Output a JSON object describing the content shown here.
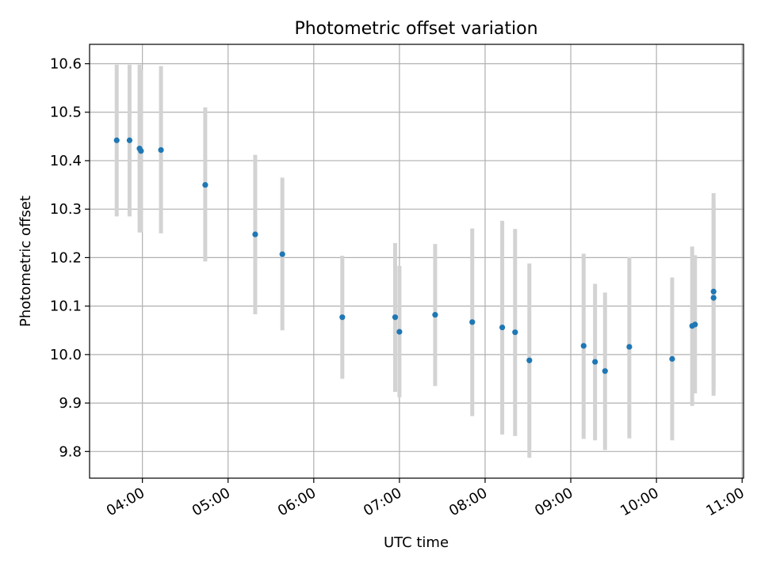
{
  "chart_data": {
    "type": "scatter",
    "title": "Photometric offset variation",
    "xlabel": "UTC time",
    "ylabel": "Photometric offset",
    "xlim": [
      "03:23",
      "11:01"
    ],
    "ylim": [
      9.745,
      10.64
    ],
    "x_ticks": [
      "04:00",
      "05:00",
      "06:00",
      "07:00",
      "08:00",
      "09:00",
      "10:00",
      "11:00"
    ],
    "y_ticks": [
      "9.8",
      "9.9",
      "10.0",
      "10.1",
      "10.2",
      "10.3",
      "10.4",
      "10.5",
      "10.6"
    ],
    "grid": true,
    "colors": {
      "point": "#1f77b4",
      "errorbar": "#d3d3d3",
      "grid": "#b0b0b0"
    },
    "points": [
      {
        "x": "03:42",
        "y": 10.442,
        "y_low": 10.285,
        "y_high": 10.598
      },
      {
        "x": "03:51",
        "y": 10.442,
        "y_low": 10.285,
        "y_high": 10.598
      },
      {
        "x": "03:58",
        "y": 10.425,
        "y_low": 10.252,
        "y_high": 10.598
      },
      {
        "x": "03:59",
        "y": 10.42,
        "y_low": 10.252,
        "y_high": 10.588
      },
      {
        "x": "04:13",
        "y": 10.422,
        "y_low": 10.25,
        "y_high": 10.595
      },
      {
        "x": "04:44",
        "y": 10.35,
        "y_low": 10.192,
        "y_high": 10.51
      },
      {
        "x": "05:19",
        "y": 10.248,
        "y_low": 10.083,
        "y_high": 10.412
      },
      {
        "x": "05:38",
        "y": 10.207,
        "y_low": 10.05,
        "y_high": 10.365
      },
      {
        "x": "06:20",
        "y": 10.077,
        "y_low": 9.95,
        "y_high": 10.204
      },
      {
        "x": "06:57",
        "y": 10.077,
        "y_low": 9.923,
        "y_high": 10.23
      },
      {
        "x": "07:00",
        "y": 10.047,
        "y_low": 9.912,
        "y_high": 10.183
      },
      {
        "x": "07:25",
        "y": 10.082,
        "y_low": 9.935,
        "y_high": 10.228
      },
      {
        "x": "07:51",
        "y": 10.067,
        "y_low": 9.873,
        "y_high": 10.26
      },
      {
        "x": "08:12",
        "y": 10.056,
        "y_low": 9.835,
        "y_high": 10.276
      },
      {
        "x": "08:21",
        "y": 10.046,
        "y_low": 9.832,
        "y_high": 10.259
      },
      {
        "x": "08:31",
        "y": 9.988,
        "y_low": 9.787,
        "y_high": 10.188
      },
      {
        "x": "09:09",
        "y": 10.018,
        "y_low": 9.826,
        "y_high": 10.208
      },
      {
        "x": "09:17",
        "y": 9.985,
        "y_low": 9.823,
        "y_high": 10.146
      },
      {
        "x": "09:24",
        "y": 9.966,
        "y_low": 9.803,
        "y_high": 10.128
      },
      {
        "x": "09:41",
        "y": 10.016,
        "y_low": 9.827,
        "y_high": 10.201
      },
      {
        "x": "10:11",
        "y": 9.991,
        "y_low": 9.823,
        "y_high": 10.159
      },
      {
        "x": "10:25",
        "y": 10.059,
        "y_low": 9.894,
        "y_high": 10.223
      },
      {
        "x": "10:27",
        "y": 10.062,
        "y_low": 9.92,
        "y_high": 10.205
      },
      {
        "x": "10:40",
        "y": 10.13,
        "y_low": 9.926,
        "y_high": 10.333
      },
      {
        "x": "10:40",
        "y": 10.117,
        "y_low": 9.915,
        "y_high": 10.315
      }
    ]
  }
}
